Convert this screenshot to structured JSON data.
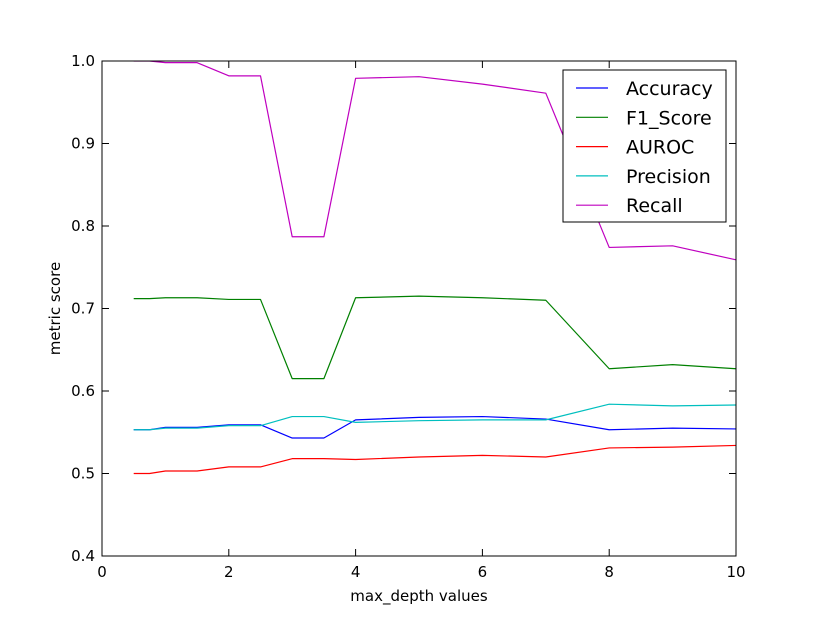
{
  "chart_data": {
    "type": "line",
    "title": "",
    "xlabel": "max_depth values",
    "ylabel": "metric score",
    "xlim": [
      0,
      10
    ],
    "ylim": [
      0.4,
      1.0
    ],
    "x_ticks": [
      0,
      2,
      4,
      6,
      8,
      10
    ],
    "y_ticks": [
      0.4,
      0.5,
      0.6,
      0.7,
      0.8,
      0.9,
      1.0
    ],
    "x_tick_labels": [
      "0",
      "2",
      "4",
      "6",
      "8",
      "10"
    ],
    "y_tick_labels": [
      "0.4",
      "0.5",
      "0.6",
      "0.7",
      "0.8",
      "0.9",
      "1.0"
    ],
    "grid": false,
    "legend_position": "top-right",
    "x": [
      0.5,
      0.75,
      1,
      1.5,
      2,
      2.5,
      3,
      3.5,
      4,
      5,
      6,
      7,
      8,
      9,
      10
    ],
    "series": [
      {
        "name": "Accuracy",
        "color": "#0000ff",
        "values": [
          0.553,
          0.553,
          0.556,
          0.556,
          0.559,
          0.559,
          0.543,
          0.543,
          0.565,
          0.568,
          0.569,
          0.566,
          0.553,
          0.555,
          0.554
        ]
      },
      {
        "name": "F1_Score",
        "color": "#008000",
        "values": [
          0.712,
          0.712,
          0.713,
          0.713,
          0.711,
          0.711,
          0.615,
          0.615,
          0.713,
          0.715,
          0.713,
          0.71,
          0.627,
          0.632,
          0.627
        ]
      },
      {
        "name": "AUROC",
        "color": "#ff0000",
        "values": [
          0.5,
          0.5,
          0.503,
          0.503,
          0.508,
          0.508,
          0.518,
          0.518,
          0.517,
          0.52,
          0.522,
          0.52,
          0.531,
          0.532,
          0.534
        ]
      },
      {
        "name": "Precision",
        "color": "#00bfbf",
        "values": [
          0.553,
          0.553,
          0.555,
          0.555,
          0.558,
          0.558,
          0.569,
          0.569,
          0.562,
          0.564,
          0.565,
          0.565,
          0.584,
          0.582,
          0.583
        ]
      },
      {
        "name": "Recall",
        "color": "#bf00bf",
        "values": [
          1.0,
          1.0,
          0.998,
          0.998,
          0.982,
          0.982,
          0.787,
          0.787,
          0.979,
          0.981,
          0.972,
          0.961,
          0.774,
          0.776,
          0.759
        ]
      }
    ]
  }
}
